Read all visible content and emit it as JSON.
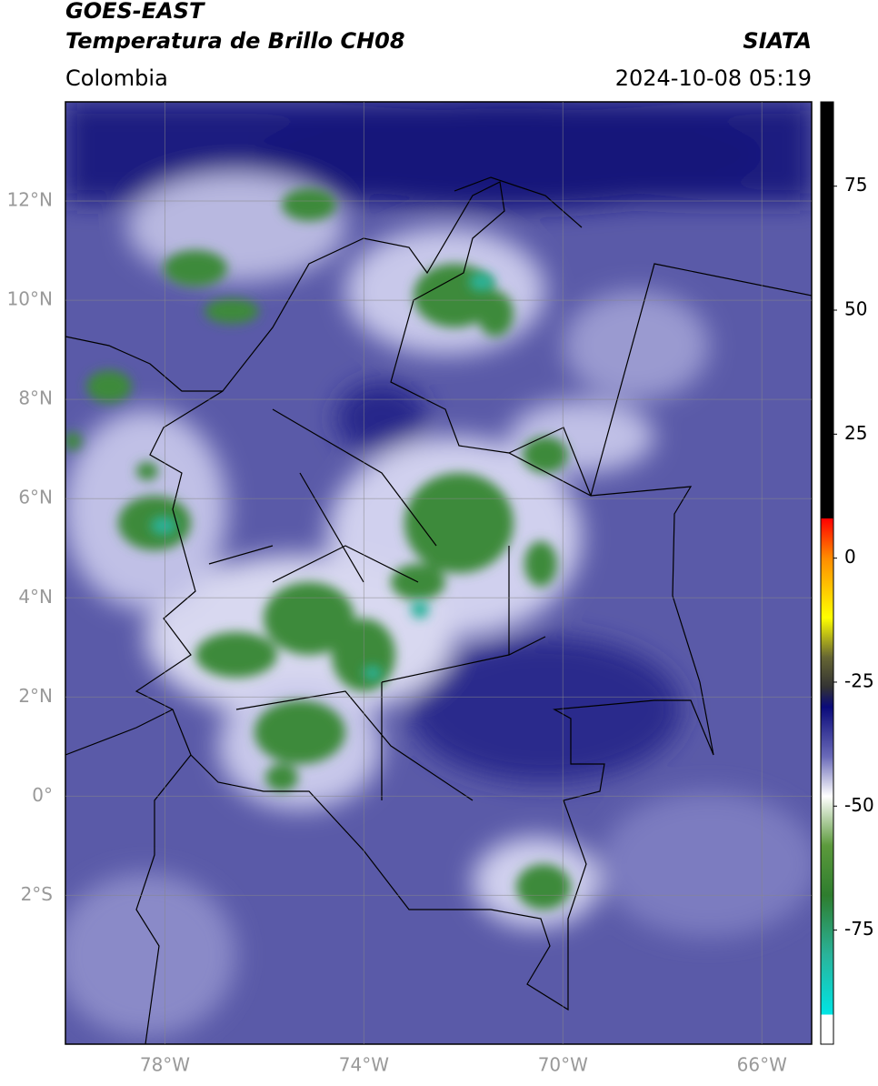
{
  "header": {
    "title": "GOES-EAST",
    "subtitle": "Temperatura de Brillo CH08",
    "source": "SIATA",
    "region": "Colombia",
    "datetime": "2024-10-08 05:19"
  },
  "map": {
    "xlim": [
      -80,
      -65
    ],
    "ylim": [
      -5,
      14
    ],
    "grid": true,
    "xticks": [
      {
        "value": -78,
        "label": "78°W"
      },
      {
        "value": -74,
        "label": "74°W"
      },
      {
        "value": -70,
        "label": "70°W"
      },
      {
        "value": -66,
        "label": "66°W"
      }
    ],
    "yticks": [
      {
        "value": 12,
        "label": "12°N"
      },
      {
        "value": 10,
        "label": "10°N"
      },
      {
        "value": 8,
        "label": "8°N"
      },
      {
        "value": 6,
        "label": "6°N"
      },
      {
        "value": 4,
        "label": "4°N"
      },
      {
        "value": 2,
        "label": "2°N"
      },
      {
        "value": 0,
        "label": "0°"
      },
      {
        "value": -2,
        "label": "2°S"
      }
    ]
  },
  "colorbar": {
    "clim": [
      -98,
      92
    ],
    "ticks": [
      75,
      50,
      25,
      0,
      -25,
      -50,
      -75
    ],
    "colormap": [
      {
        "value": 92,
        "color": "#000000"
      },
      {
        "value": 8,
        "color": "#000000"
      },
      {
        "value": 8,
        "color": "#ff0000"
      },
      {
        "value": 0,
        "color": "#ff8c00"
      },
      {
        "value": -12,
        "color": "#ffff00"
      },
      {
        "value": -20,
        "color": "#666633"
      },
      {
        "value": -26,
        "color": "#333333"
      },
      {
        "value": -30,
        "color": "#0a0a7a"
      },
      {
        "value": -40,
        "color": "#6a6ab8"
      },
      {
        "value": -48,
        "color": "#ffffff"
      },
      {
        "value": -58,
        "color": "#5c9a3c"
      },
      {
        "value": -68,
        "color": "#2e7d2e"
      },
      {
        "value": -80,
        "color": "#2ab39a"
      },
      {
        "value": -92,
        "color": "#00e5e5"
      },
      {
        "value": -92,
        "color": "#ffffff"
      },
      {
        "value": -98,
        "color": "#ffffff"
      }
    ]
  }
}
